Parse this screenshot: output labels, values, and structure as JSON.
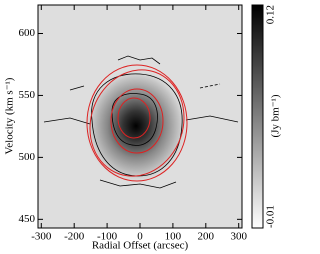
{
  "chart_data": {
    "type": "heatmap",
    "x_label": "Radial Offset (arcsec)",
    "y_label": "Velocity (km s⁻¹)",
    "xlim": [
      -310,
      310
    ],
    "xticks": [
      -300,
      -200,
      -100,
      0,
      100,
      200,
      300
    ],
    "ylim": [
      443,
      623
    ],
    "yticks": [
      450,
      500,
      550,
      600
    ],
    "colorbar": {
      "label": "(Jy bm⁻¹)",
      "lim": [
        -0.01,
        0.12
      ],
      "ticks": [
        -0.01,
        0.12
      ]
    }
  }
}
